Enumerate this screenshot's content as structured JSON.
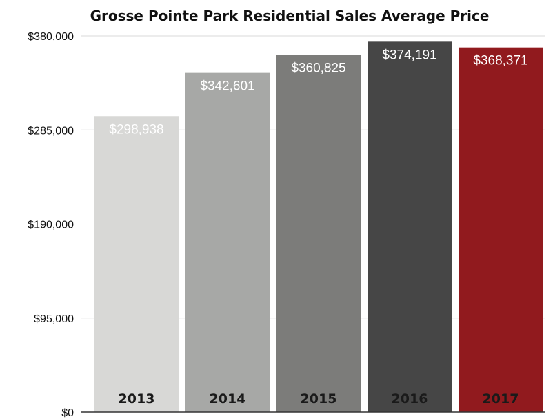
{
  "chart_data": {
    "type": "bar",
    "title": "Grosse Pointe Park Residential Sales Average Price",
    "categories": [
      "2013",
      "2014",
      "2015",
      "2016",
      "2017"
    ],
    "values": [
      298938,
      342601,
      360825,
      374191,
      368371
    ],
    "value_labels": [
      "$298,938",
      "$342,601",
      "$360,825",
      "$374,191",
      "$368,371"
    ],
    "colors": [
      "#d8d8d6",
      "#a7a8a6",
      "#7c7c7a",
      "#464646",
      "#911a1e"
    ],
    "ylim": [
      0,
      380000
    ],
    "yticks": [
      0,
      95000,
      190000,
      285000,
      380000
    ],
    "ytick_labels": [
      "$0",
      "$95,000",
      "$190,000",
      "$285,000",
      "$380,000"
    ],
    "grid": true,
    "xlabel": "",
    "ylabel": ""
  }
}
